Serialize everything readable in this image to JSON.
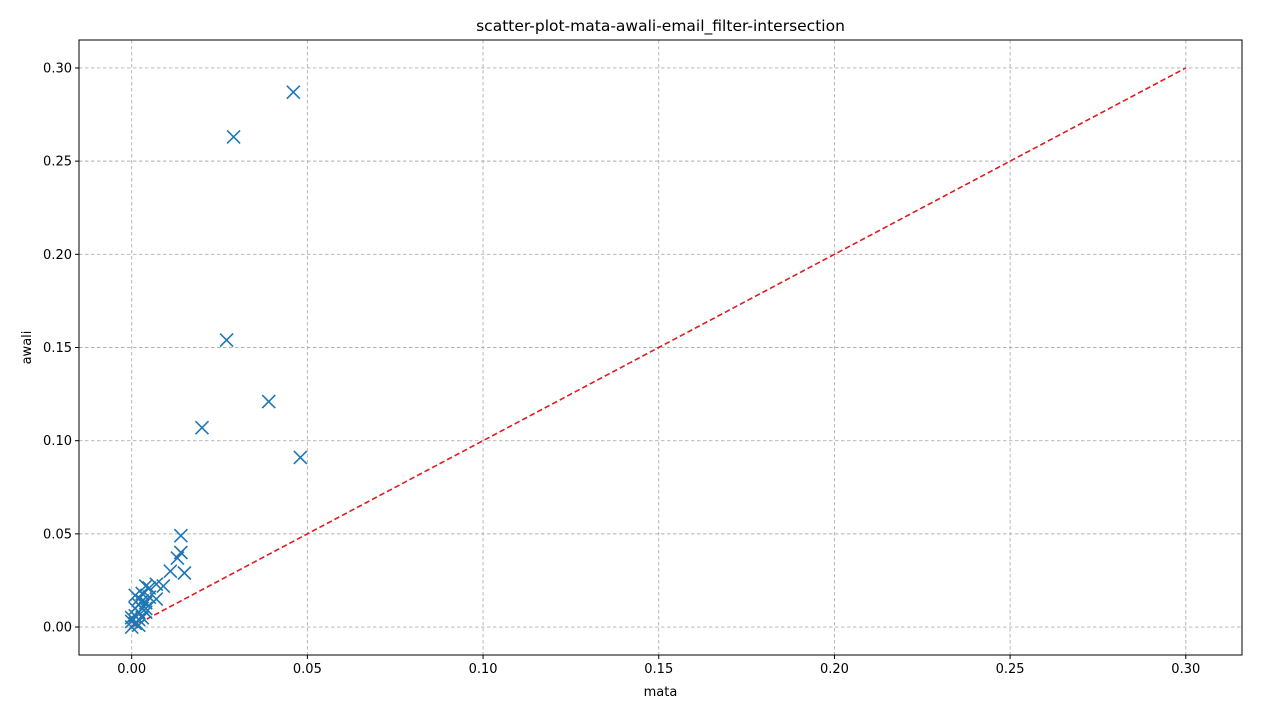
{
  "chart_data": {
    "type": "scatter",
    "title": "scatter-plot-mata-awali-email_filter-intersection",
    "xlabel": "mata",
    "ylabel": "awali",
    "xlim": [
      -0.015,
      0.316
    ],
    "ylim": [
      -0.015,
      0.315
    ],
    "xticks": [
      0.0,
      0.05,
      0.1,
      0.15,
      0.2,
      0.25,
      0.3
    ],
    "yticks": [
      0.0,
      0.05,
      0.1,
      0.15,
      0.2,
      0.25,
      0.3
    ],
    "xtick_labels": [
      "0.00",
      "0.05",
      "0.10",
      "0.15",
      "0.20",
      "0.25",
      "0.30"
    ],
    "ytick_labels": [
      "0.00",
      "0.05",
      "0.10",
      "0.15",
      "0.20",
      "0.25",
      "0.30"
    ],
    "grid": true,
    "marker": "x",
    "marker_color": "#1f77b4",
    "reference_line": {
      "x": [
        0.0,
        0.3
      ],
      "y": [
        0.0,
        0.3
      ],
      "color": "#e41a1c",
      "style": "dashed"
    },
    "points": [
      [
        0.046,
        0.287
      ],
      [
        0.029,
        0.263
      ],
      [
        0.027,
        0.154
      ],
      [
        0.039,
        0.121
      ],
      [
        0.02,
        0.107
      ],
      [
        0.048,
        0.091
      ],
      [
        0.014,
        0.049
      ],
      [
        0.014,
        0.04
      ],
      [
        0.013,
        0.037
      ],
      [
        0.015,
        0.029
      ],
      [
        0.011,
        0.03
      ],
      [
        0.009,
        0.022
      ],
      [
        0.007,
        0.023
      ],
      [
        0.007,
        0.015
      ],
      [
        0.005,
        0.021
      ],
      [
        0.004,
        0.022
      ],
      [
        0.005,
        0.016
      ],
      [
        0.003,
        0.018
      ],
      [
        0.004,
        0.013
      ],
      [
        0.003,
        0.01
      ],
      [
        0.002,
        0.012
      ],
      [
        0.001,
        0.017
      ],
      [
        0.002,
        0.008
      ],
      [
        0.001,
        0.006
      ],
      [
        0.003,
        0.005
      ],
      [
        0.0,
        0.005
      ],
      [
        0.0,
        0.003
      ],
      [
        0.0,
        0.0
      ],
      [
        0.001,
        0.002
      ],
      [
        0.002,
        0.001
      ],
      [
        0.004,
        0.01
      ],
      [
        0.003,
        0.014
      ],
      [
        0.004,
        0.008
      ],
      [
        0.002,
        0.004
      ],
      [
        0.001,
        0.01
      ],
      [
        0.002,
        0.015
      ]
    ]
  }
}
